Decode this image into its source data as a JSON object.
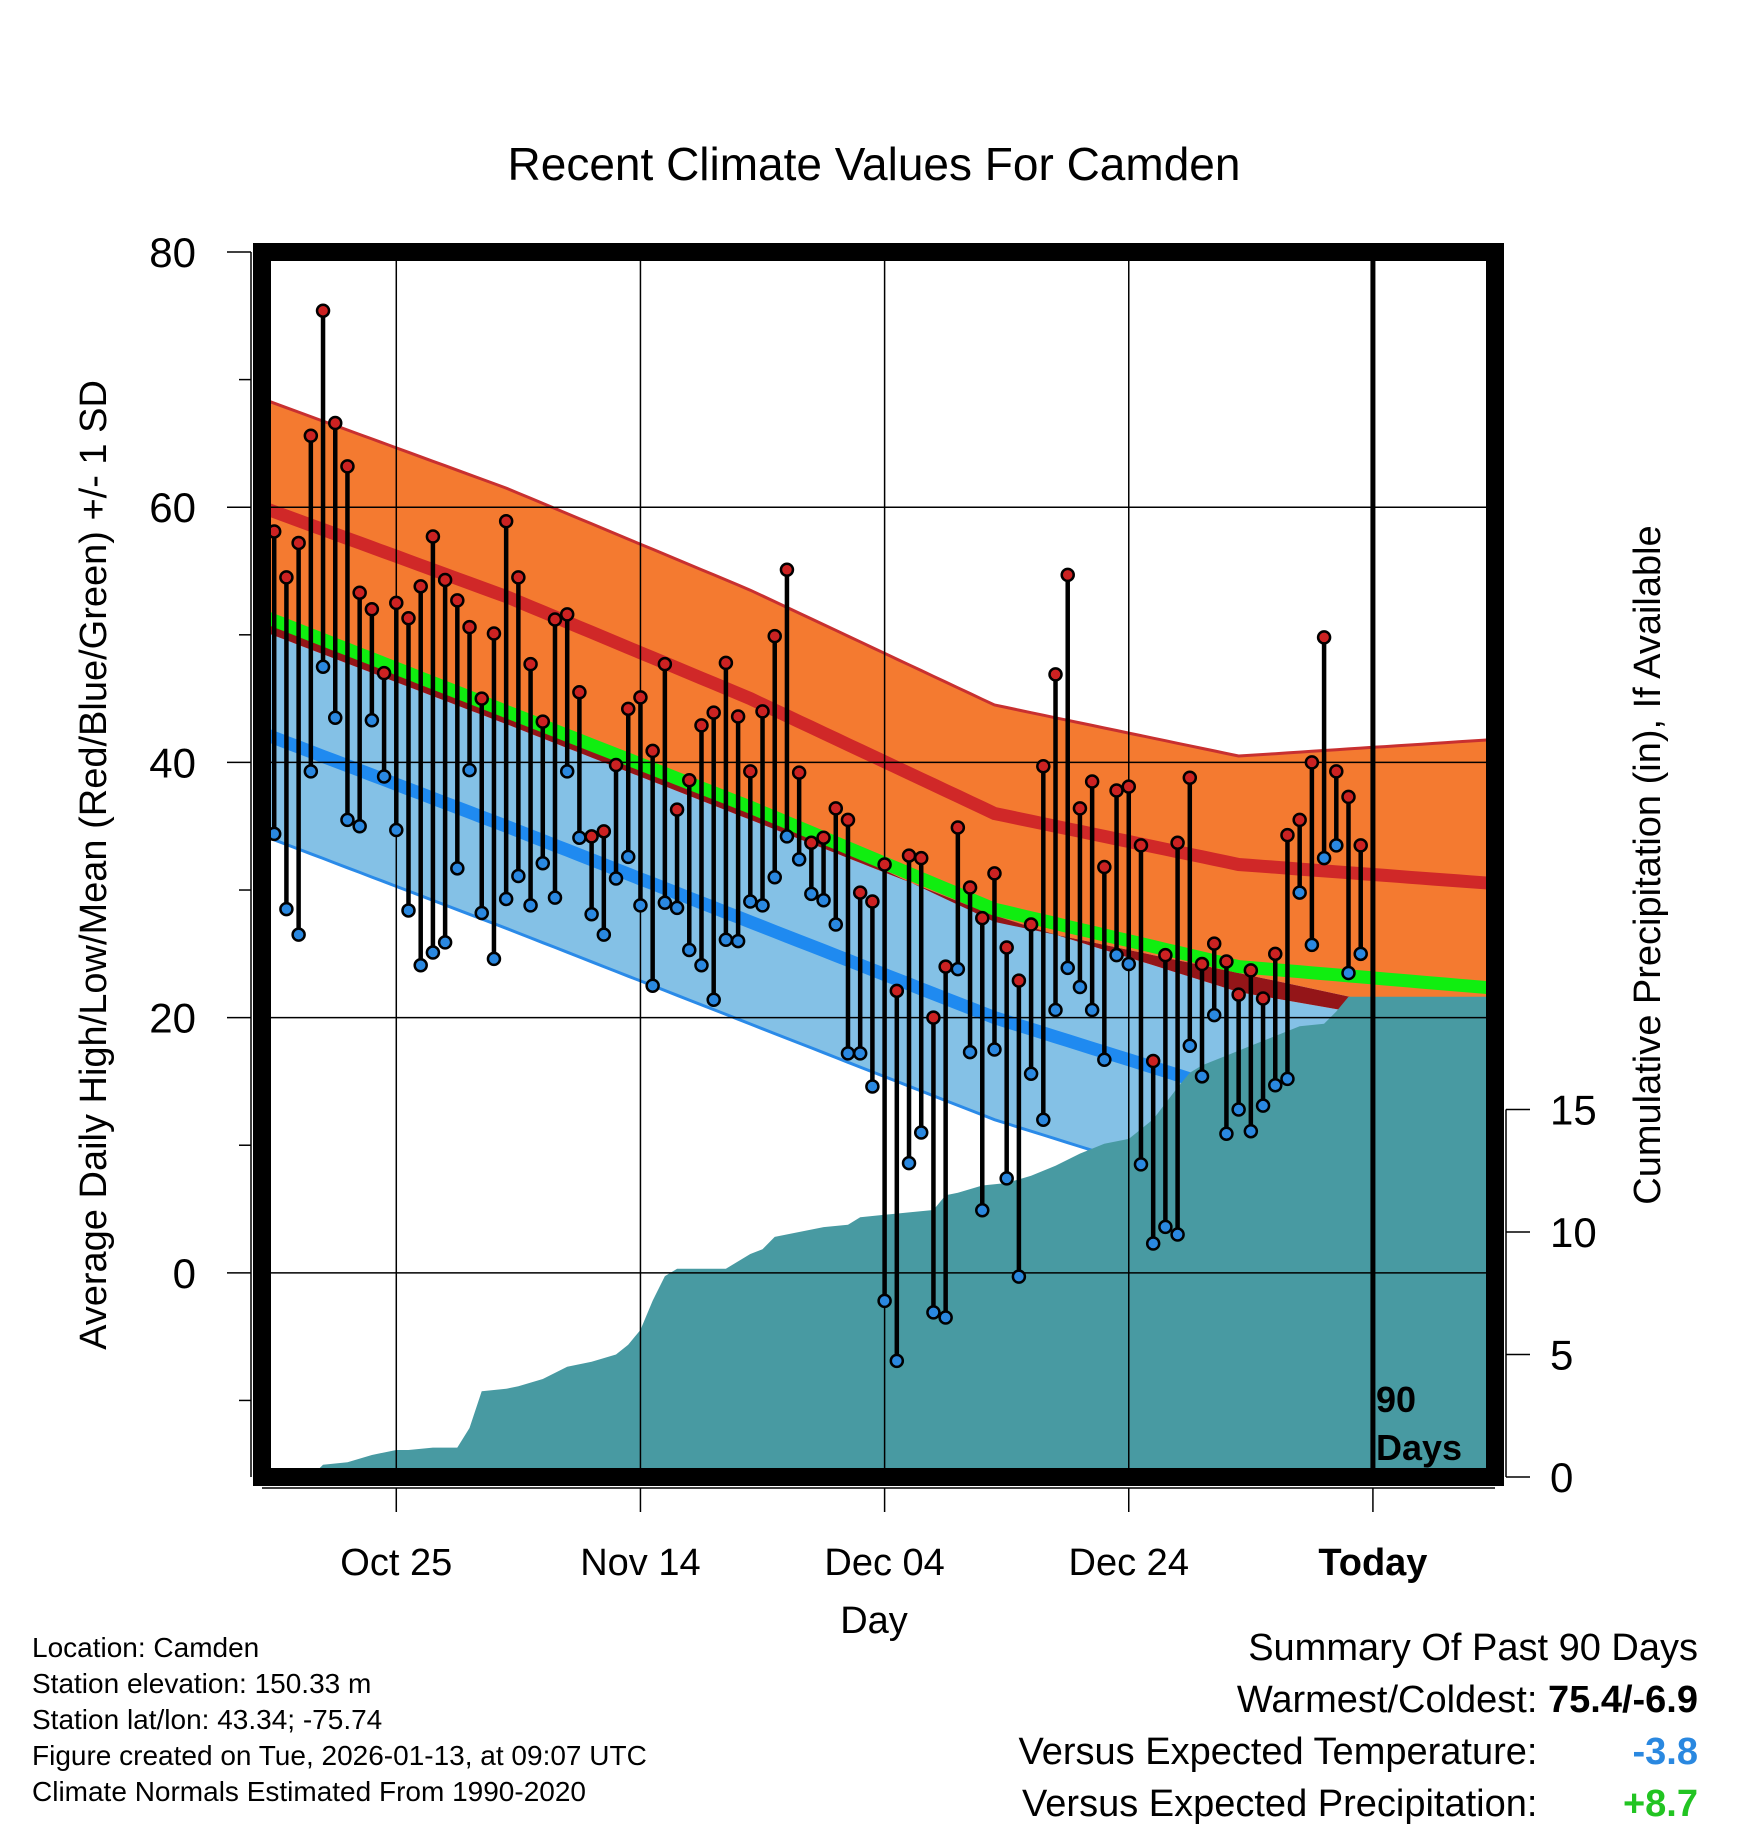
{
  "chart_data": {
    "type": "line",
    "title": "Recent Climate Values For Camden",
    "xlabel": "Day",
    "ylabel_left": "Average Daily High/Low/Mean (Red/Blue/Green) +/- 1 SD",
    "ylabel_right": "Cumulative Precipitation (in), If Available",
    "x_tick_labels": [
      "Oct 25",
      "Nov 14",
      "Dec 04",
      "Dec 24",
      "Today"
    ],
    "x_tick_days": [
      11,
      31,
      51,
      71,
      91
    ],
    "xlim": [
      0,
      101
    ],
    "ylim_left": [
      -16,
      80
    ],
    "y_left_ticks": [
      0,
      20,
      40,
      60,
      80
    ],
    "ylim_right": [
      0,
      50
    ],
    "y_right_ticks": [
      0,
      5,
      10,
      15
    ],
    "today_marker": {
      "day": 91,
      "label_line1": "90",
      "label_line2": "Days"
    },
    "normals": {
      "day": [
        0,
        20,
        40,
        60,
        80,
        101
      ],
      "high_mean": [
        60,
        53,
        45,
        36,
        32,
        30.5
      ],
      "high_sd": [
        8.5,
        8.5,
        8.5,
        8.5,
        8.5,
        11.3
      ],
      "low_mean": [
        42.3,
        35,
        27.5,
        20,
        14,
        10.5
      ],
      "low_sd": [
        8,
        8,
        8,
        8,
        8,
        8
      ],
      "mean_mean": [
        51.5,
        44,
        36.5,
        28.5,
        24,
        22.3
      ]
    },
    "series": [
      {
        "name": "High",
        "color": "#cc2222",
        "values": [
          58.1,
          54.5,
          57.2,
          65.6,
          75.4,
          66.6,
          63.2,
          53.3,
          52.0,
          47.0,
          52.5,
          51.3,
          53.8,
          57.7,
          54.3,
          52.7,
          50.6,
          45.0,
          50.1,
          58.9,
          54.5,
          47.7,
          43.2,
          51.2,
          51.6,
          45.5,
          34.2,
          34.6,
          39.8,
          44.2,
          45.1,
          40.9,
          47.7,
          36.3,
          38.6,
          42.9,
          43.9,
          47.8,
          43.6,
          39.3,
          44.0,
          49.9,
          55.1,
          39.2,
          33.7,
          34.1,
          36.4,
          35.5,
          29.8,
          29.1,
          32.0,
          22.1,
          32.7,
          32.5,
          20.0,
          24.0,
          34.9,
          30.2,
          27.8,
          31.3,
          25.5,
          22.9,
          27.3,
          39.7,
          46.9,
          54.7,
          36.4,
          38.5,
          31.8,
          37.8,
          38.1,
          33.5,
          16.6,
          24.9,
          33.7,
          38.8,
          24.2,
          25.8,
          24.4,
          21.8,
          23.7,
          21.5,
          25.0,
          34.3,
          35.5,
          40.0,
          49.8,
          39.3,
          37.3,
          33.5
        ],
        "max": 75.4
      },
      {
        "name": "Low",
        "color": "#2a88e0",
        "values": [
          34.4,
          28.5,
          26.5,
          39.3,
          47.5,
          43.5,
          35.5,
          35.0,
          43.3,
          38.9,
          34.7,
          28.4,
          24.1,
          25.1,
          25.9,
          31.7,
          39.4,
          28.2,
          24.6,
          29.3,
          31.1,
          28.8,
          32.1,
          29.4,
          39.3,
          34.1,
          28.1,
          26.5,
          30.9,
          32.6,
          28.8,
          22.5,
          29.0,
          28.6,
          25.3,
          24.1,
          21.4,
          26.1,
          26.0,
          29.1,
          28.8,
          31.0,
          34.2,
          32.4,
          29.7,
          29.2,
          27.3,
          17.2,
          17.2,
          14.6,
          -2.2,
          -6.9,
          8.6,
          11.0,
          -3.1,
          -3.5,
          23.8,
          17.3,
          4.9,
          17.5,
          7.4,
          -0.3,
          15.6,
          12.0,
          20.6,
          23.9,
          22.4,
          20.6,
          16.7,
          24.9,
          24.2,
          8.5,
          2.3,
          3.6,
          3.0,
          17.8,
          15.4,
          20.2,
          10.9,
          12.8,
          11.1,
          13.1,
          14.7,
          15.2,
          29.8,
          25.7,
          32.5,
          33.5,
          23.5,
          25.0
        ],
        "min": -6.9
      }
    ],
    "cumulative_precipitation": [
      [
        0,
        0
      ],
      [
        4,
        0
      ],
      [
        5,
        0.5
      ],
      [
        7,
        0.6
      ],
      [
        9,
        0.9
      ],
      [
        11,
        1.1
      ],
      [
        12,
        1.1
      ],
      [
        14,
        1.2
      ],
      [
        16,
        1.2
      ],
      [
        17,
        2.0
      ],
      [
        18,
        3.5
      ],
      [
        20,
        3.6
      ],
      [
        21,
        3.7
      ],
      [
        23,
        4.0
      ],
      [
        25,
        4.5
      ],
      [
        27,
        4.7
      ],
      [
        29,
        5.0
      ],
      [
        30,
        5.4
      ],
      [
        31,
        6.0
      ],
      [
        32,
        7.2
      ],
      [
        33,
        8.2
      ],
      [
        34,
        8.5
      ],
      [
        36,
        8.5
      ],
      [
        38,
        8.5
      ],
      [
        40,
        9.1
      ],
      [
        41,
        9.3
      ],
      [
        42,
        9.8
      ],
      [
        44,
        10.0
      ],
      [
        46,
        10.2
      ],
      [
        48,
        10.3
      ],
      [
        49,
        10.6
      ],
      [
        51,
        10.7
      ],
      [
        53,
        10.8
      ],
      [
        55,
        10.9
      ],
      [
        56,
        11.5
      ],
      [
        57,
        11.6
      ],
      [
        59,
        11.9
      ],
      [
        61,
        12.0
      ],
      [
        63,
        12.3
      ],
      [
        65,
        12.7
      ],
      [
        67,
        13.2
      ],
      [
        69,
        13.6
      ],
      [
        71,
        13.8
      ],
      [
        73,
        14.6
      ],
      [
        75,
        15.9
      ],
      [
        76,
        16.5
      ],
      [
        77,
        16.8
      ],
      [
        79,
        17.2
      ],
      [
        81,
        17.6
      ],
      [
        83,
        18.0
      ],
      [
        85,
        18.4
      ],
      [
        87,
        18.5
      ],
      [
        88,
        19.0
      ],
      [
        89,
        19.6
      ],
      [
        90,
        19.6
      ],
      [
        101,
        19.6
      ]
    ]
  },
  "footer_left": {
    "location": "Location: Camden",
    "elevation": "Station elevation: 150.33 m",
    "latlon": "Station lat/lon: 43.34; -75.74",
    "created": "Figure created on Tue, 2026-01-13, at 09:07 UTC",
    "normals_note": "Climate Normals Estimated From 1990-2020"
  },
  "summary": {
    "title": "Summary Of Past 90 Days",
    "warmest_label": "Warmest/Coldest:",
    "warmest_value": "75.4/-6.9",
    "temp_label": "Versus Expected Temperature:",
    "temp_value": "-3.8",
    "temp_color": "#2a88e0",
    "precip_label": "Versus Expected Precipitation:",
    "precip_value": "+8.7",
    "precip_color": "#22c422"
  }
}
